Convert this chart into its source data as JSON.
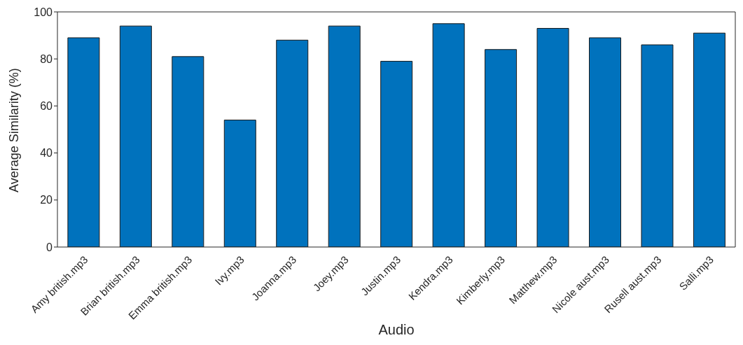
{
  "chart_data": {
    "type": "bar",
    "xlabel": "Audio",
    "ylabel": "Average Similarity (%)",
    "categories": [
      "Amy british.mp3",
      "Brian british.mp3",
      "Emma british.mp3",
      "Ivy.mp3",
      "Joanna.mp3",
      "Joey.mp3",
      "Justin.mp3",
      "Kendra.mp3",
      "Kimberly.mp3",
      "Matthew.mp3",
      "Nicole aust.mp3",
      "Rusell aust.mp3",
      "Salli.mp3"
    ],
    "values": [
      89,
      94,
      81,
      54,
      88,
      94,
      79,
      95,
      84,
      93,
      89,
      86,
      91
    ],
    "color": "#0072bd",
    "ylim": [
      0,
      100
    ],
    "yticks": [
      0,
      20,
      40,
      60,
      80,
      100
    ],
    "grid": false,
    "legend": false
  }
}
